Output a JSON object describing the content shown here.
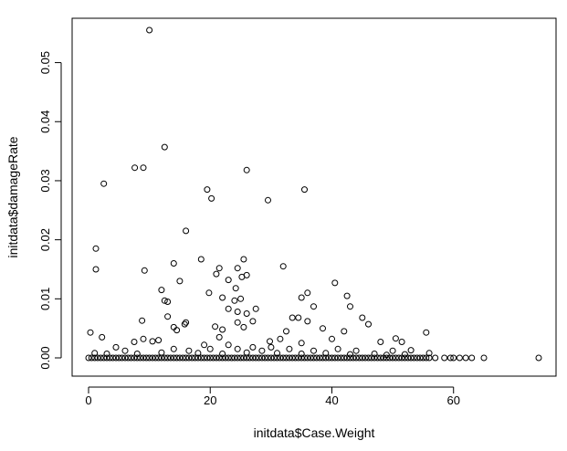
{
  "chart_data": {
    "type": "scatter",
    "title": "",
    "xlabel": "initdata$Case.Weight",
    "ylabel": "initdata$damageRate",
    "xlim": [
      0,
      75
    ],
    "ylim": [
      0,
      0.056
    ],
    "xticks": [
      0,
      20,
      40,
      60
    ],
    "xtick_labels": [
      "0",
      "20",
      "40",
      "60"
    ],
    "yticks": [
      0,
      0.01,
      0.02,
      0.03,
      0.04,
      0.05
    ],
    "ytick_labels": [
      "0.00",
      "0.01",
      "0.02",
      "0.03",
      "0.04",
      "0.05"
    ],
    "grid": false,
    "marker": "open-circle",
    "series": [
      {
        "points": [
          [
            10,
            0.0555
          ],
          [
            12.5,
            0.0357
          ],
          [
            7.6,
            0.0322
          ],
          [
            9,
            0.0322
          ],
          [
            26,
            0.0318
          ],
          [
            2.5,
            0.0295
          ],
          [
            19.5,
            0.0285
          ],
          [
            35.5,
            0.0285
          ],
          [
            20.2,
            0.027
          ],
          [
            29.5,
            0.0267
          ],
          [
            16,
            0.0215
          ],
          [
            1.2,
            0.0185
          ],
          [
            25.5,
            0.0167
          ],
          [
            18.5,
            0.0167
          ],
          [
            14,
            0.016
          ],
          [
            32,
            0.0155
          ],
          [
            1.2,
            0.015
          ],
          [
            24.5,
            0.0152
          ],
          [
            21.5,
            0.0152
          ],
          [
            9.2,
            0.0148
          ],
          [
            26,
            0.014
          ],
          [
            25.2,
            0.0137
          ],
          [
            21,
            0.0142
          ],
          [
            15,
            0.013
          ],
          [
            40.5,
            0.0127
          ],
          [
            23,
            0.0132
          ],
          [
            12,
            0.0115
          ],
          [
            19.8,
            0.011
          ],
          [
            24.2,
            0.0118
          ],
          [
            36,
            0.011
          ],
          [
            22,
            0.0102
          ],
          [
            35,
            0.0102
          ],
          [
            42.5,
            0.0105
          ],
          [
            12.5,
            0.0097
          ],
          [
            13,
            0.0095
          ],
          [
            24,
            0.0097
          ],
          [
            25,
            0.01
          ],
          [
            43,
            0.0087
          ],
          [
            37,
            0.0087
          ],
          [
            27.5,
            0.0083
          ],
          [
            23,
            0.0083
          ],
          [
            24.5,
            0.0078
          ],
          [
            26,
            0.0075
          ],
          [
            33.5,
            0.0068
          ],
          [
            13,
            0.007
          ],
          [
            34.5,
            0.0068
          ],
          [
            8.8,
            0.0063
          ],
          [
            16,
            0.006
          ],
          [
            27,
            0.0062
          ],
          [
            45,
            0.0068
          ],
          [
            46,
            0.0057
          ],
          [
            36,
            0.0062
          ],
          [
            15.8,
            0.0057
          ],
          [
            14,
            0.0052
          ],
          [
            20.8,
            0.0053
          ],
          [
            24.5,
            0.006
          ],
          [
            25.5,
            0.0052
          ],
          [
            38.5,
            0.005
          ],
          [
            14.5,
            0.0047
          ],
          [
            22,
            0.0048
          ],
          [
            32.5,
            0.0045
          ],
          [
            42,
            0.0045
          ],
          [
            0.3,
            0.0043
          ],
          [
            55.5,
            0.0043
          ],
          [
            2.2,
            0.0035
          ],
          [
            11.5,
            0.003
          ],
          [
            31.5,
            0.0032
          ],
          [
            40,
            0.0032
          ],
          [
            50.5,
            0.0033
          ],
          [
            21.5,
            0.0035
          ],
          [
            7.5,
            0.0027
          ],
          [
            9,
            0.0032
          ],
          [
            10.5,
            0.0028
          ],
          [
            29.8,
            0.0028
          ],
          [
            35,
            0.0025
          ],
          [
            48,
            0.0027
          ],
          [
            51.5,
            0.0027
          ],
          [
            19,
            0.0022
          ],
          [
            23,
            0.0022
          ],
          [
            27,
            0.0018
          ],
          [
            4.5,
            0.0018
          ],
          [
            6,
            0.0012
          ],
          [
            14,
            0.0015
          ],
          [
            16.5,
            0.0012
          ],
          [
            20,
            0.0015
          ],
          [
            24.5,
            0.0015
          ],
          [
            28.5,
            0.0012
          ],
          [
            30,
            0.0018
          ],
          [
            33,
            0.0015
          ],
          [
            37,
            0.0012
          ],
          [
            41,
            0.0015
          ],
          [
            44,
            0.0012
          ],
          [
            50,
            0.0012
          ],
          [
            53,
            0.0013
          ],
          [
            56,
            0.0008
          ],
          [
            1,
            0.0008
          ],
          [
            3,
            0.0007
          ],
          [
            8,
            0.0007
          ],
          [
            12,
            0.0009
          ],
          [
            18,
            0.0008
          ],
          [
            22,
            0.0007
          ],
          [
            26,
            0.0009
          ],
          [
            31,
            0.0008
          ],
          [
            35,
            0.0007
          ],
          [
            39,
            0.0008
          ],
          [
            43,
            0.0006
          ],
          [
            47,
            0.0007
          ],
          [
            49,
            0.0005
          ],
          [
            52,
            0.0006
          ]
        ],
        "zero_band": {
          "y": 0,
          "x_start": 0,
          "x_end": 56,
          "x_step": 0.5,
          "extra_x": [
            57,
            58.5,
            59.5,
            60,
            61,
            62,
            63,
            65,
            74
          ]
        }
      }
    ]
  }
}
